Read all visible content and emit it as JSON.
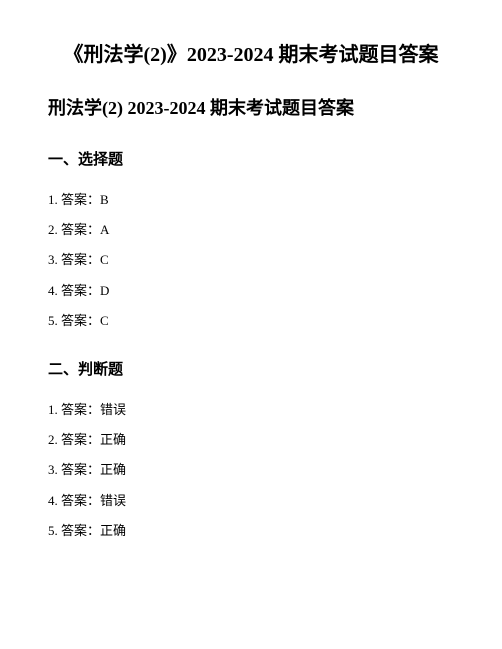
{
  "mainTitle": "《刑法学(2)》2023-2024 期末考试题目答案",
  "subTitle": "刑法学(2) 2023-2024 期末考试题目答案",
  "sections": [
    {
      "title": "一、选择题",
      "items": [
        "1. 答案：B",
        "2. 答案：A",
        "3. 答案：C",
        "4. 答案：D",
        "5. 答案：C"
      ]
    },
    {
      "title": "二、判断题",
      "items": [
        "1. 答案：错误",
        "2. 答案：正确",
        "3. 答案：正确",
        "4. 答案：错误",
        "5. 答案：正确"
      ]
    }
  ]
}
